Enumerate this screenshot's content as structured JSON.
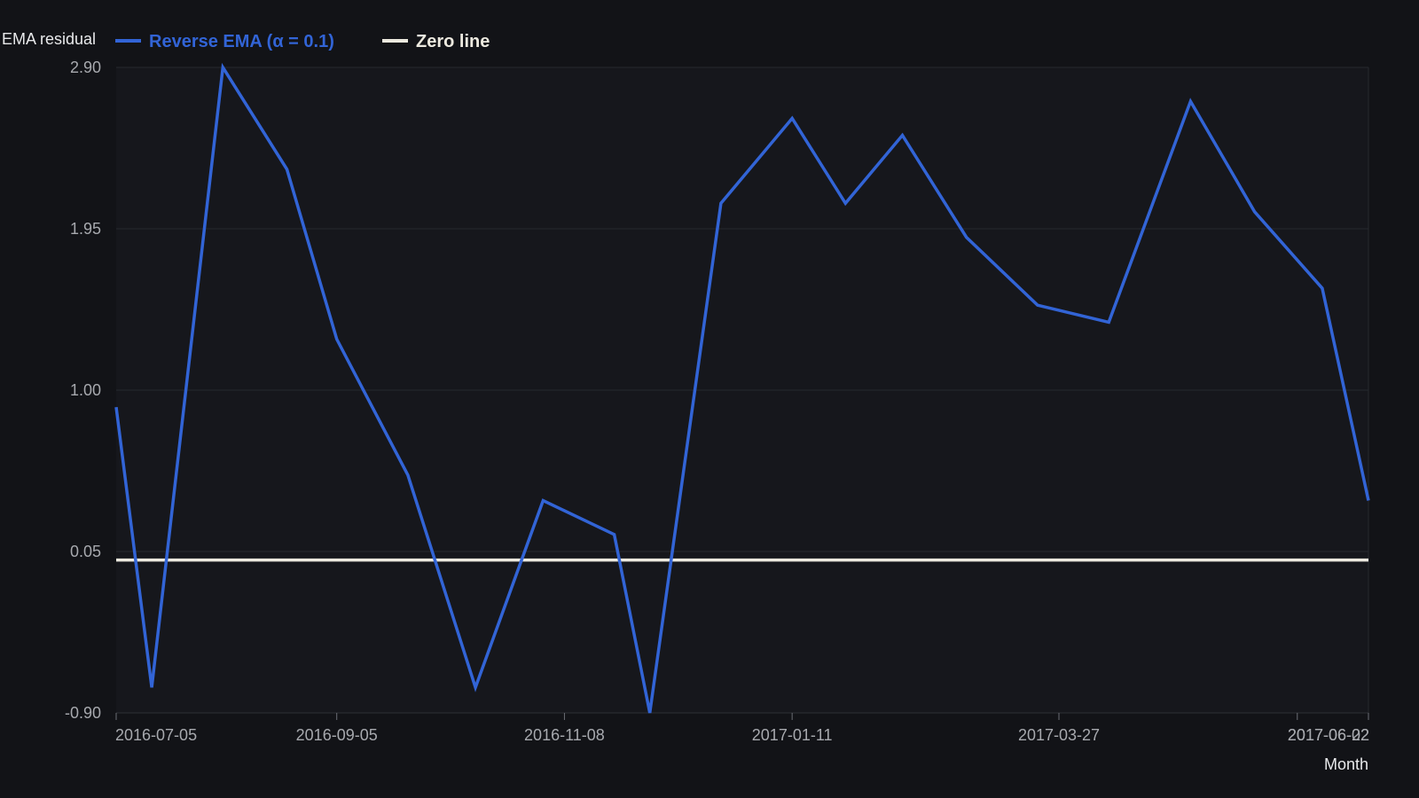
{
  "chart_data": {
    "type": "line",
    "ylabel": "EMA residual",
    "xlabel": "Month",
    "ylim": [
      -0.9,
      2.9
    ],
    "y_ticks": [
      "2.90",
      "1.95",
      "1.00",
      "0.05",
      "-0.90"
    ],
    "y_tick_values": [
      2.9,
      1.95,
      1.0,
      0.05,
      -0.9
    ],
    "x_ticks": [
      "2016-07-05",
      "2016-09-05",
      "2016-11-08",
      "2017-01-11",
      "2017-03-27",
      "2017-06-02",
      "2017-06-22"
    ],
    "x_range": [
      "2016-07-05",
      "2017-06-22"
    ],
    "grid": true,
    "legend_position": "top-left",
    "series": [
      {
        "name": "Reverse EMA (α = 0.1)",
        "color": "#3264d6",
        "points": [
          {
            "x": "2016-07-05",
            "y": 0.9
          },
          {
            "x": "2016-07-15",
            "y": -0.75
          },
          {
            "x": "2016-08-04",
            "y": 2.9
          },
          {
            "x": "2016-08-22",
            "y": 2.3
          },
          {
            "x": "2016-09-05",
            "y": 1.3
          },
          {
            "x": "2016-09-25",
            "y": 0.5
          },
          {
            "x": "2016-10-14",
            "y": -0.75
          },
          {
            "x": "2016-11-02",
            "y": 0.35
          },
          {
            "x": "2016-11-22",
            "y": 0.15
          },
          {
            "x": "2016-12-02",
            "y": -0.9
          },
          {
            "x": "2016-12-22",
            "y": 2.1
          },
          {
            "x": "2017-01-11",
            "y": 2.6
          },
          {
            "x": "2017-01-26",
            "y": 2.1
          },
          {
            "x": "2017-02-11",
            "y": 2.5
          },
          {
            "x": "2017-03-01",
            "y": 1.9
          },
          {
            "x": "2017-03-21",
            "y": 1.5
          },
          {
            "x": "2017-04-10",
            "y": 1.4
          },
          {
            "x": "2017-05-03",
            "y": 2.7
          },
          {
            "x": "2017-05-21",
            "y": 2.05
          },
          {
            "x": "2017-06-09",
            "y": 1.6
          },
          {
            "x": "2017-06-22",
            "y": 0.35
          }
        ]
      },
      {
        "name": "Zero line",
        "color": "#ece9df",
        "points": [
          {
            "x": "2016-07-05",
            "y": 0
          },
          {
            "x": "2017-06-22",
            "y": 0
          }
        ]
      }
    ]
  }
}
